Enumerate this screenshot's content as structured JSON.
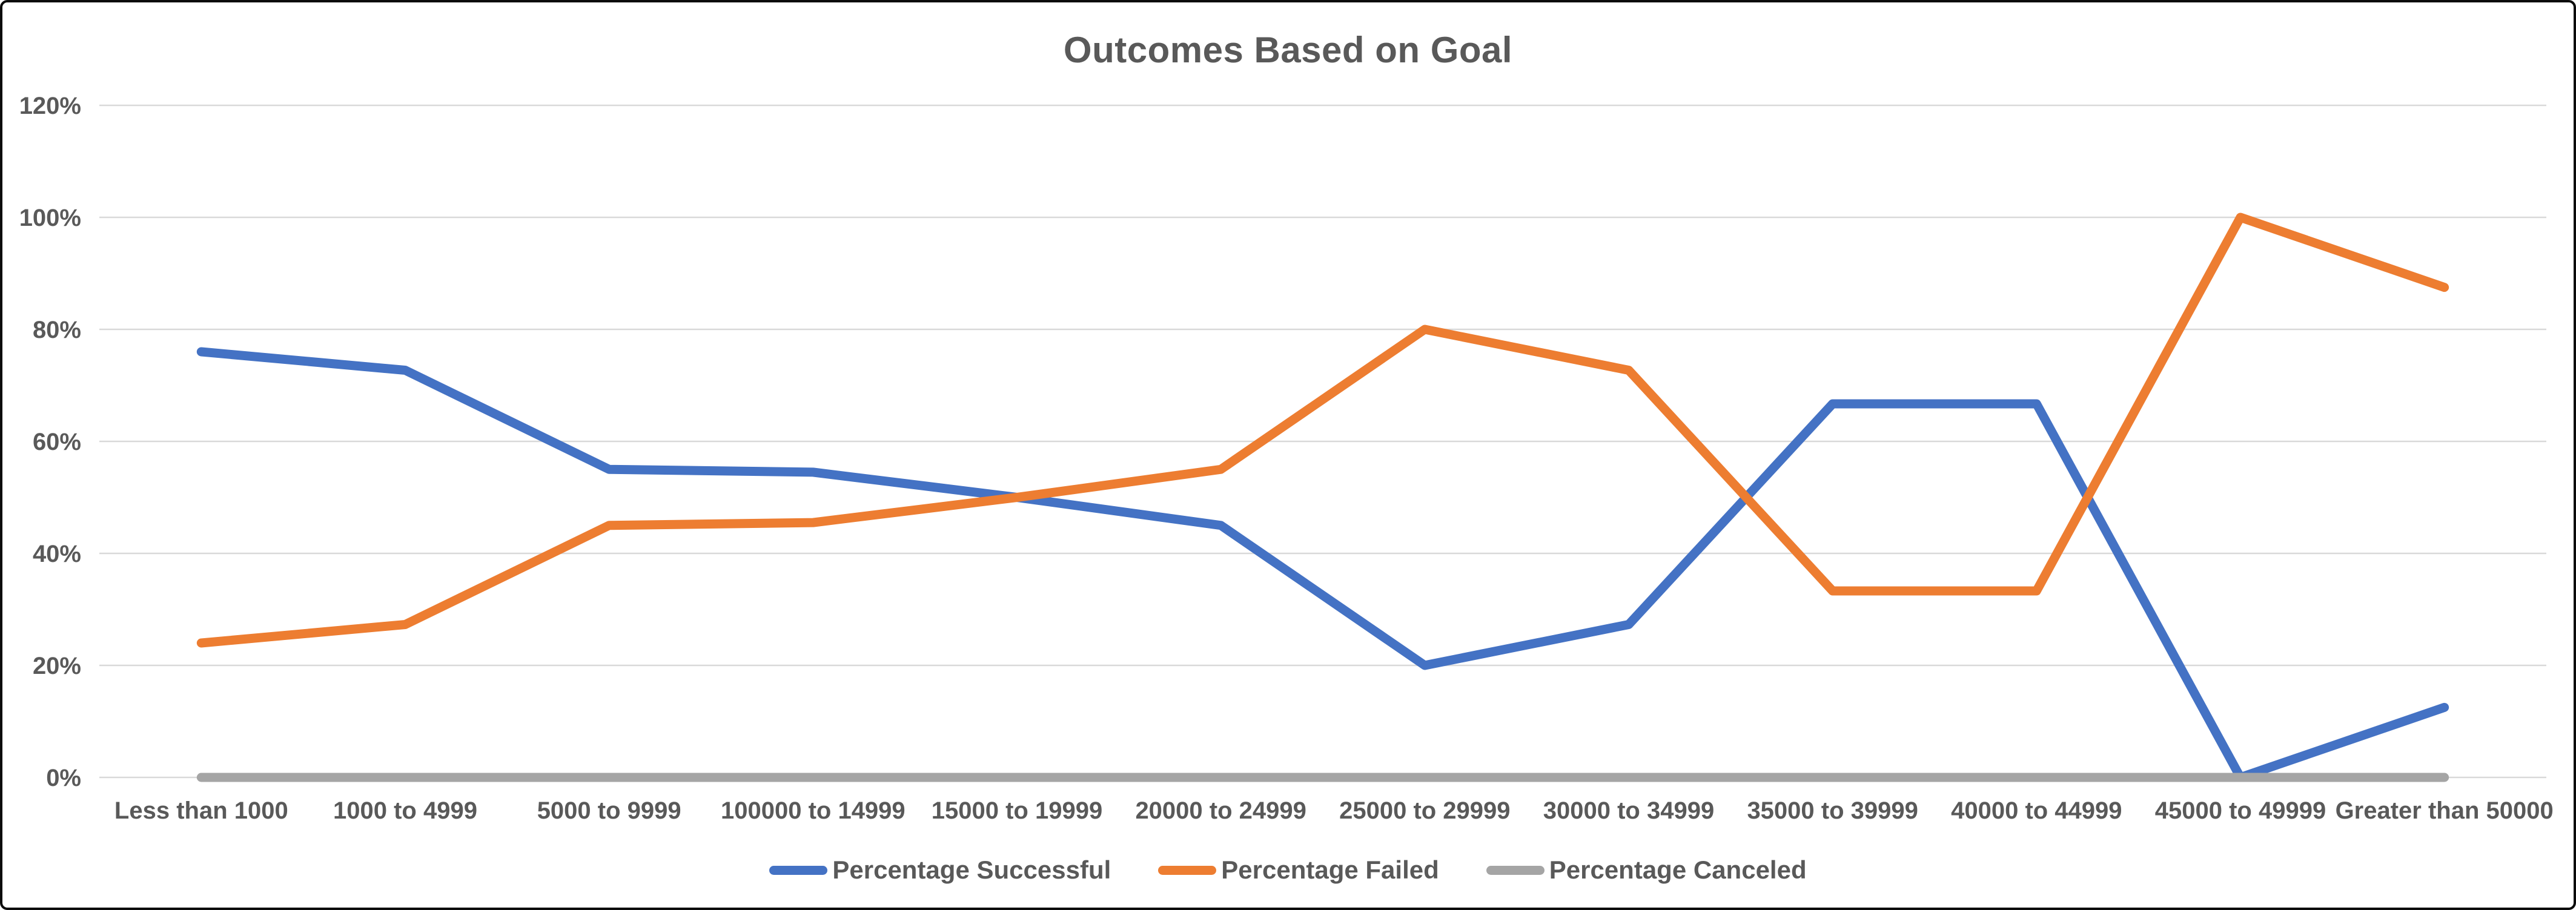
{
  "title": "Outcomes Based on Goal",
  "colors": {
    "series_successful": "#4472C4",
    "series_failed": "#ED7D31",
    "series_canceled": "#A5A5A5",
    "text": "#595959",
    "gridline": "#D9D9D9",
    "frame_border": "#0c0c0c",
    "background": "#ffffff"
  },
  "chart_data": {
    "type": "line",
    "title": "Outcomes Based on Goal",
    "categories": [
      "Less than 1000",
      "1000 to 4999",
      "5000 to 9999",
      "100000 to 14999",
      "15000 to 19999",
      "20000 to 24999",
      "25000 to 29999",
      "30000 to 34999",
      "35000 to 39999",
      "40000 to 44999",
      "45000 to 49999",
      "Greater than 50000"
    ],
    "series": [
      {
        "name": "Percentage Successful",
        "color": "#4472C4",
        "values": [
          76,
          72.7,
          55,
          54.5,
          50,
          45,
          20,
          27.3,
          66.7,
          66.7,
          0,
          12.5
        ]
      },
      {
        "name": "Percentage Failed",
        "color": "#ED7D31",
        "values": [
          24,
          27.3,
          45,
          45.5,
          50,
          55,
          80,
          72.7,
          33.3,
          33.3,
          100,
          87.5
        ]
      },
      {
        "name": "Percentage Canceled",
        "color": "#A5A5A5",
        "values": [
          0,
          0,
          0,
          0,
          0,
          0,
          0,
          0,
          0,
          0,
          0,
          0
        ]
      }
    ],
    "y_ticks": [
      "0%",
      "20%",
      "40%",
      "60%",
      "80%",
      "100%",
      "120%"
    ],
    "ylim": [
      0,
      120
    ],
    "grid": true,
    "legend_position": "bottom",
    "xlabel": "",
    "ylabel": ""
  }
}
